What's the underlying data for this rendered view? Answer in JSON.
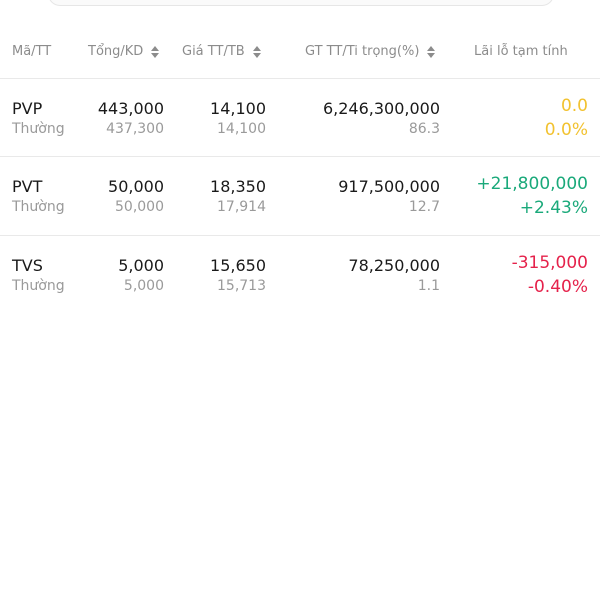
{
  "colors": {
    "neutral": "#f2c230",
    "up": "#1aa97a",
    "down": "#e5224b",
    "header_text": "#8c8c8c",
    "primary_text": "#1a1a1a",
    "secondary_text": "#9a9a9a"
  },
  "header": {
    "ma_tt": "Mã/TT",
    "tong_kd": "Tổng/KD",
    "gia_tt_tb": "Giá TT/TB",
    "gt_tt_ti_trong": "GT TT/Ti trọng(%)",
    "lai_lo": "Lãi lỗ tạm tính",
    "sort_icon": "sort-up-down-icon"
  },
  "rows": [
    {
      "symbol": "PVP",
      "type": "Thường",
      "tong": "443,000",
      "kd": "437,300",
      "gia_tt": "14,100",
      "gia_tb": "14,100",
      "gt_tt": "6,246,300,000",
      "ti_trong": "86.3",
      "lai_lo": "0.0",
      "lai_lo_pct": "0.0%",
      "trend": "neutral"
    },
    {
      "symbol": "PVT",
      "type": "Thường",
      "tong": "50,000",
      "kd": "50,000",
      "gia_tt": "18,350",
      "gia_tb": "17,914",
      "gt_tt": "917,500,000",
      "ti_trong": "12.7",
      "lai_lo": "+21,800,000",
      "lai_lo_pct": "+2.43%",
      "trend": "up"
    },
    {
      "symbol": "TVS",
      "type": "Thường",
      "tong": "5,000",
      "kd": "5,000",
      "gia_tt": "15,650",
      "gia_tb": "15,713",
      "gt_tt": "78,250,000",
      "ti_trong": "1.1",
      "lai_lo": "-315,000",
      "lai_lo_pct": "-0.40%",
      "trend": "down"
    }
  ]
}
